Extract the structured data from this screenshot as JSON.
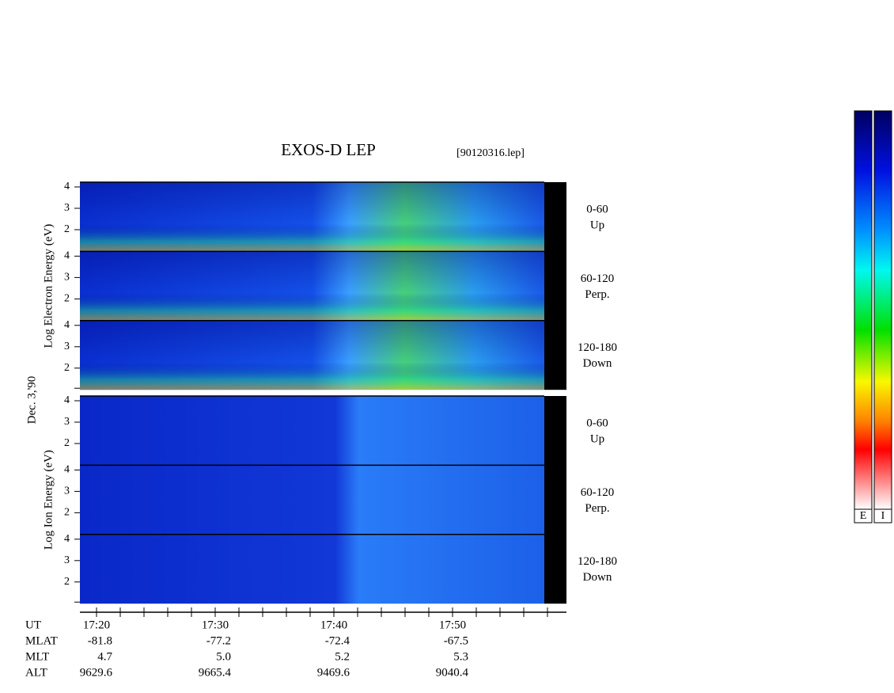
{
  "header": {
    "title": "EXOS-D LEP",
    "file": "[90120316.lep]"
  },
  "date": "Dec. 3,'90",
  "groups": [
    {
      "axis_label": "Log Electron Energy (eV)",
      "panels": [
        {
          "ticks": [
            "4",
            "3",
            "2"
          ],
          "pitch": "0-60",
          "direction": "Up"
        },
        {
          "ticks": [
            "4",
            "3",
            "2"
          ],
          "pitch": "60-120",
          "direction": "Perp."
        },
        {
          "ticks": [
            "4",
            "3",
            "2"
          ],
          "pitch": "120-180",
          "direction": "Down"
        }
      ]
    },
    {
      "axis_label": "Log Ion Energy (eV)",
      "panels": [
        {
          "ticks": [
            "4",
            "3",
            "2"
          ],
          "pitch": "0-60",
          "direction": "Up"
        },
        {
          "ticks": [
            "4",
            "3",
            "2"
          ],
          "pitch": "60-120",
          "direction": "Perp."
        },
        {
          "ticks": [
            "4",
            "3",
            "2"
          ],
          "pitch": "120-180",
          "direction": "Down"
        }
      ]
    }
  ],
  "time_axis": {
    "rows": [
      {
        "label": "UT",
        "values": [
          "17:20",
          "17:30",
          "17:40",
          "17:50"
        ]
      },
      {
        "label": "MLAT",
        "values": [
          "-81.8",
          "-77.2",
          "-72.4",
          "-67.5"
        ]
      },
      {
        "label": "MLT",
        "values": [
          "4.7",
          "5.0",
          "5.2",
          "5.3"
        ]
      },
      {
        "label": "ALT",
        "values": [
          "9629.6",
          "9665.4",
          "9469.6",
          "9040.4"
        ]
      }
    ]
  },
  "colorbars": [
    "E",
    "I"
  ]
}
